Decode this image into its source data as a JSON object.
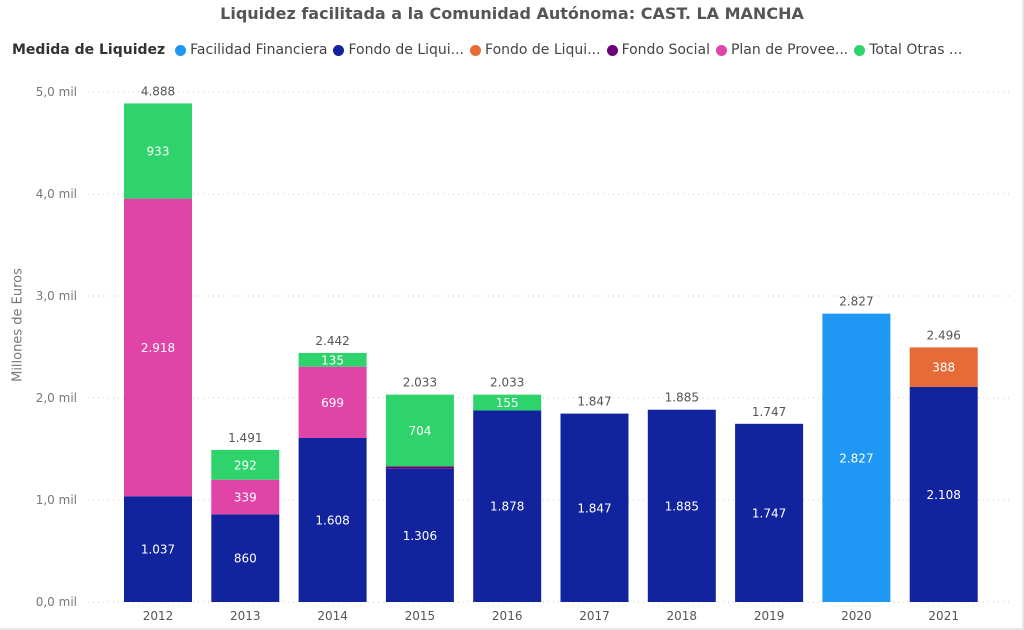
{
  "chart_data": {
    "type": "bar",
    "stacked": true,
    "title": "Liquidez facilitada a la Comunidad Autónoma: CAST. LA MANCHA",
    "legend_title": "Medida de Liquidez",
    "legend_placement": "top-left",
    "ylabel": "Millones de Euros",
    "xlabel": "",
    "ylim": [
      0,
      5.0
    ],
    "yticks": [
      {
        "value": 0,
        "label": "0,0 mil"
      },
      {
        "value": 1,
        "label": "1,0 mil"
      },
      {
        "value": 2,
        "label": "2,0 mil"
      },
      {
        "value": 3,
        "label": "3,0 mil"
      },
      {
        "value": 4,
        "label": "4,0 mil"
      },
      {
        "value": 5,
        "label": "5,0 mil"
      }
    ],
    "grid": true,
    "categories": [
      "2012",
      "2013",
      "2014",
      "2015",
      "2016",
      "2017",
      "2018",
      "2019",
      "2020",
      "2021"
    ],
    "totals": [
      "4.888",
      "1.491",
      "2.442",
      "2.033",
      "2.033",
      "1.847",
      "1.885",
      "1.747",
      "2.827",
      "2.496"
    ],
    "series": [
      {
        "name": "Facilidad Financiera",
        "color": "#1f97f4",
        "values": [
          0,
          0,
          0,
          0,
          0,
          0,
          0,
          0,
          2.827,
          0
        ],
        "labels": [
          "",
          "",
          "",
          "",
          "",
          "",
          "",
          "",
          "2.827",
          ""
        ]
      },
      {
        "name": "Fondo de Liqui...",
        "color": "#12239e",
        "values": [
          1.037,
          0.86,
          1.608,
          1.306,
          1.878,
          1.847,
          1.885,
          1.747,
          0,
          2.108
        ],
        "labels": [
          "1.037",
          "860",
          "1.608",
          "1.306",
          "1.878",
          "1.847",
          "1.885",
          "1.747",
          "",
          "2.108"
        ]
      },
      {
        "name": "Fondo de Liqui...",
        "color": "#e66c37",
        "values": [
          0,
          0,
          0,
          0,
          0,
          0,
          0,
          0,
          0,
          0.388
        ],
        "labels": [
          "",
          "",
          "",
          "",
          "",
          "",
          "",
          "",
          "",
          "388"
        ]
      },
      {
        "name": "Fondo Social",
        "color": "#6b007b",
        "values": [
          0,
          0,
          0,
          0.023,
          0,
          0,
          0,
          0,
          0,
          0
        ],
        "labels": [
          "",
          "",
          "",
          "",
          "",
          "",
          "",
          "",
          "",
          ""
        ]
      },
      {
        "name": "Plan de Provee...",
        "color": "#e044a7",
        "values": [
          2.918,
          0.339,
          0.699,
          0,
          0,
          0,
          0,
          0,
          0,
          0
        ],
        "labels": [
          "2.918",
          "339",
          "699",
          "",
          "",
          "",
          "",
          "",
          "",
          ""
        ]
      },
      {
        "name": "Total Otras ...",
        "color": "#2fd36b",
        "values": [
          0.933,
          0.292,
          0.135,
          0.704,
          0.155,
          0,
          0,
          0,
          0,
          0
        ],
        "labels": [
          "933",
          "292",
          "135",
          "704",
          "155",
          "",
          "",
          "",
          "",
          ""
        ]
      }
    ]
  }
}
